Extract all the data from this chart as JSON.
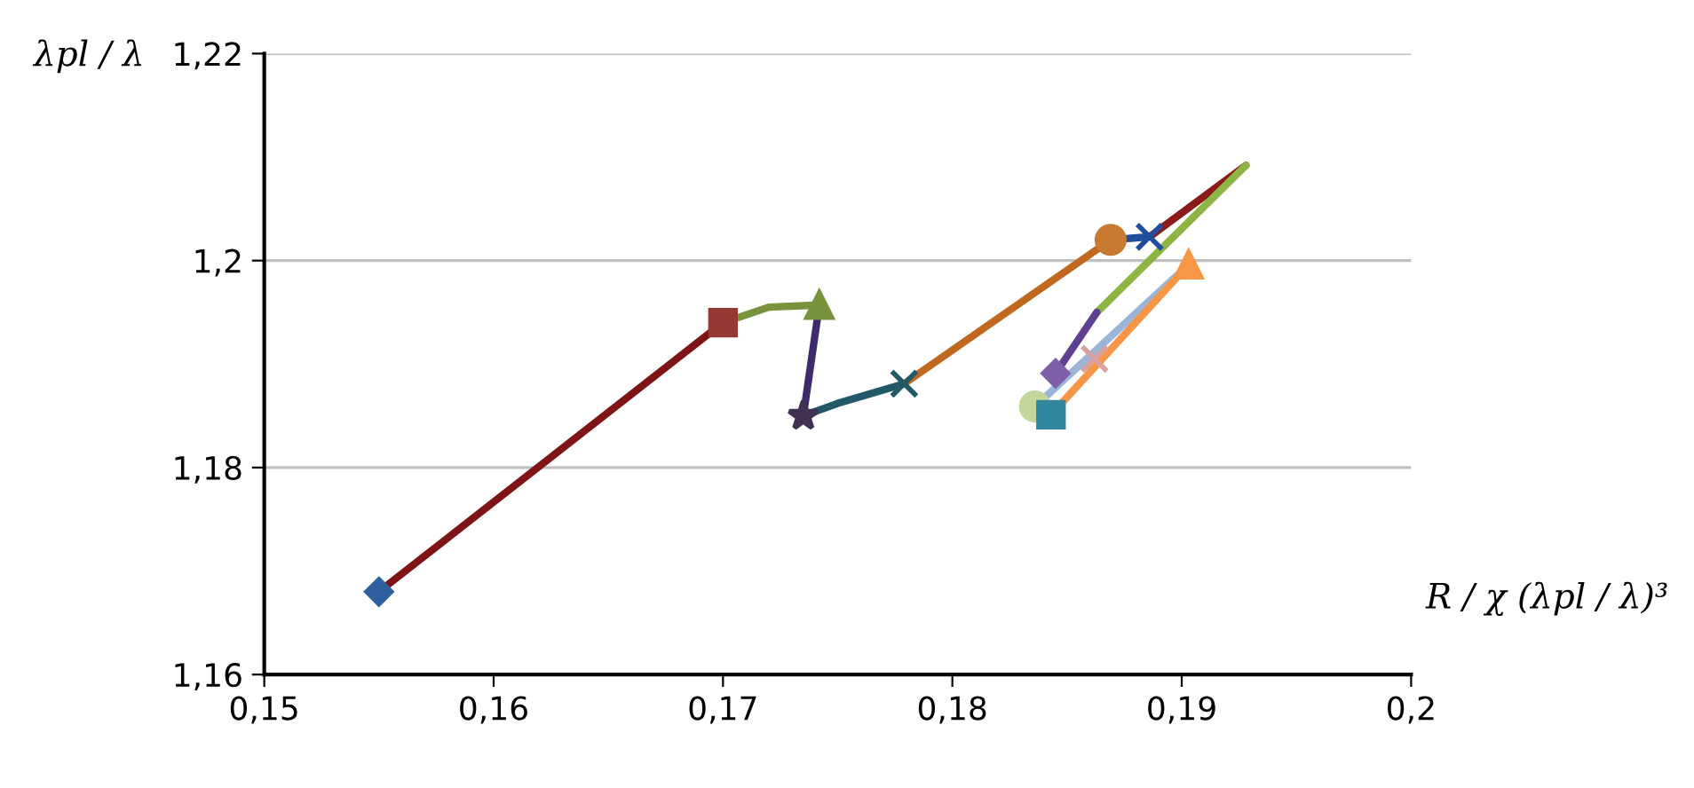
{
  "chart_data": {
    "type": "line",
    "ylabel": "λpl / λ",
    "xlabel": "R / χ (λpl / λ)³",
    "xlim": [
      0.15,
      0.2
    ],
    "ylim": [
      1.16,
      1.22
    ],
    "xticks": [
      {
        "value": 0.15,
        "label": "0,15"
      },
      {
        "value": 0.16,
        "label": "0,16"
      },
      {
        "value": 0.17,
        "label": "0,17"
      },
      {
        "value": 0.18,
        "label": "0,18"
      },
      {
        "value": 0.19,
        "label": "0,19"
      },
      {
        "value": 0.2,
        "label": "0,2"
      }
    ],
    "yticks": [
      {
        "value": 1.16,
        "label": "1,16"
      },
      {
        "value": 1.18,
        "label": "1,18"
      },
      {
        "value": 1.2,
        "label": "1,2"
      },
      {
        "value": 1.22,
        "label": "1,22"
      }
    ],
    "grid": "y",
    "legend": false,
    "series": [
      {
        "color": "#7f1416",
        "x": [
          0.155,
          0.17
        ],
        "values": [
          1.168,
          1.194
        ]
      },
      {
        "color": "#77933c",
        "x": [
          0.17,
          0.172,
          0.1742
        ],
        "values": [
          1.194,
          1.1955,
          1.1957
        ]
      },
      {
        "color": "#3f2a6b",
        "x": [
          0.1742,
          0.1735
        ],
        "values": [
          1.1957,
          1.185
        ]
      },
      {
        "color": "#215968",
        "x": [
          0.1735,
          0.175,
          0.1779
        ],
        "values": [
          1.185,
          1.1862,
          1.1881
        ]
      },
      {
        "color": "#c0681e",
        "x": [
          0.1779,
          0.1869
        ],
        "values": [
          1.1881,
          1.202
        ]
      },
      {
        "color": "#1f4e9c",
        "x": [
          0.1869,
          0.1886
        ],
        "values": [
          1.202,
          1.2023
        ]
      },
      {
        "color": "#8b1a1a",
        "x": [
          0.1886,
          0.1928
        ],
        "values": [
          1.2023,
          1.2092
        ]
      },
      {
        "color": "#8db544",
        "x": [
          0.1928,
          0.1863
        ],
        "values": [
          1.2092,
          1.195
        ]
      },
      {
        "color": "#5f3f8f",
        "x": [
          0.1863,
          0.1845
        ],
        "values": [
          1.195,
          1.1891
        ]
      },
      {
        "color": "#9ab5d6",
        "x": [
          0.1836,
          0.1903
        ],
        "values": [
          1.1859,
          1.1996
        ]
      },
      {
        "color": "#f79646",
        "x": [
          0.1843,
          0.1903
        ],
        "values": [
          1.1851,
          1.1996
        ]
      },
      {
        "type": "scatter",
        "marker": "diamond",
        "color": "#2e5f9e",
        "x": [
          0.155
        ],
        "values": [
          1.168
        ]
      },
      {
        "type": "scatter",
        "marker": "square",
        "color": "#953735",
        "x": [
          0.17
        ],
        "values": [
          1.194
        ]
      },
      {
        "type": "scatter",
        "marker": "triangle",
        "color": "#77933c",
        "x": [
          0.1742
        ],
        "values": [
          1.1957
        ]
      },
      {
        "type": "scatter",
        "marker": "star",
        "color": "#403152",
        "x": [
          0.1735
        ],
        "values": [
          1.185
        ]
      },
      {
        "type": "scatter",
        "marker": "cross",
        "color": "#215968",
        "x": [
          0.1779
        ],
        "values": [
          1.1881
        ]
      },
      {
        "type": "scatter",
        "marker": "circle",
        "color": "#c77a30",
        "x": [
          0.1869
        ],
        "values": [
          1.202
        ]
      },
      {
        "type": "scatter",
        "marker": "cross",
        "color": "#1f4e9c",
        "x": [
          0.1886
        ],
        "values": [
          1.2023
        ]
      },
      {
        "type": "scatter",
        "marker": "diamond",
        "color": "#7f5fa8",
        "x": [
          0.1845
        ],
        "values": [
          1.1891
        ]
      },
      {
        "type": "scatter",
        "marker": "cross",
        "color": "#d9a0a0",
        "x": [
          0.1862
        ],
        "values": [
          1.1905
        ]
      },
      {
        "type": "scatter",
        "marker": "circle",
        "color": "#c3d69b",
        "x": [
          0.1836
        ],
        "values": [
          1.1859
        ]
      },
      {
        "type": "scatter",
        "marker": "square",
        "color": "#31859c",
        "x": [
          0.1843
        ],
        "values": [
          1.1851
        ]
      },
      {
        "type": "scatter",
        "marker": "triangle",
        "color": "#f79646",
        "x": [
          0.1903
        ],
        "values": [
          1.1996
        ]
      }
    ]
  }
}
